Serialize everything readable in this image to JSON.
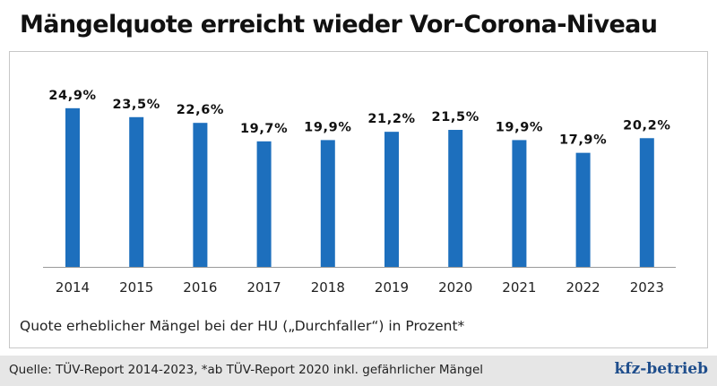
{
  "header": {
    "title": "Mängelquote erreicht wieder Vor-Corona-Niveau"
  },
  "caption": {
    "subtitle": "Quote erheblicher Mängel bei der HU („Durchfaller“) in Prozent*"
  },
  "footer": {
    "source": "Quelle: TÜV-Report 2014-2023, *ab  TÜV-Report 2020 inkl. gefährlicher Mängel",
    "logo": "kfz-betrieb"
  },
  "colors": {
    "bar": "#1d6fbd",
    "axis": "#9a9a9a",
    "footer_bg": "#e6e6e6",
    "logo": "#1f4e8c"
  },
  "chart_data": {
    "type": "bar",
    "title": "Mängelquote erreicht wieder Vor-Corona-Niveau",
    "xlabel": "",
    "ylabel": "Quote erheblicher Mängel bei der HU („Durchfaller“) in Prozent*",
    "categories": [
      "2014",
      "2015",
      "2016",
      "2017",
      "2018",
      "2019",
      "2020",
      "2021",
      "2022",
      "2023"
    ],
    "values": [
      24.9,
      23.5,
      22.6,
      19.7,
      19.9,
      21.2,
      21.5,
      19.9,
      17.9,
      20.2
    ],
    "labels": [
      "24,9%",
      "23,5%",
      "22,6%",
      "19,7%",
      "19,9%",
      "21,2%",
      "21,5%",
      "19,9%",
      "17,9%",
      "20,2%"
    ],
    "ylim": [
      0,
      26
    ],
    "grid": false,
    "legend": "none"
  }
}
